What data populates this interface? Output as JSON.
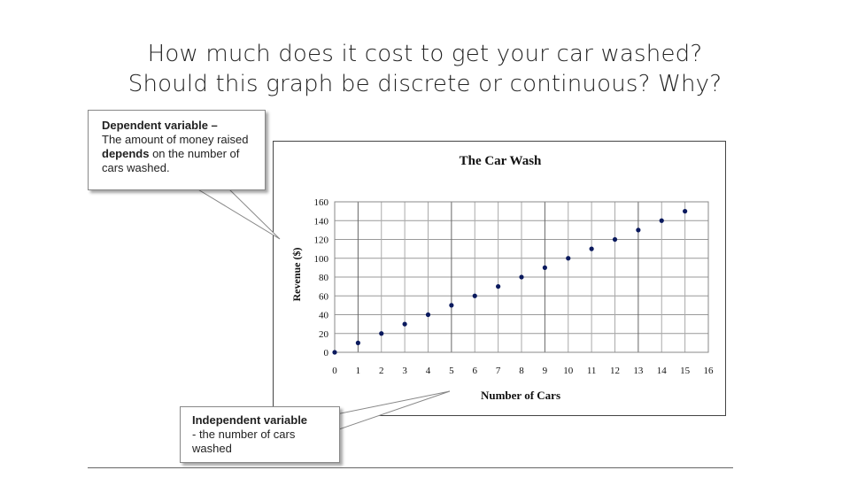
{
  "slide": {
    "title_line1": "How much does it cost to get your car washed?",
    "title_line2": "Should this graph be discrete or continuous?  Why?"
  },
  "callouts": {
    "dependent": {
      "heading": "Dependent variable –",
      "text_before": "The amount of money raised ",
      "emphasis": "depends",
      "text_after": " on the number of cars washed."
    },
    "independent": {
      "heading": "Independent variable",
      "text": "- the number of cars washed"
    }
  },
  "chart_data": {
    "type": "scatter",
    "title": "The Car Wash",
    "xlabel": "Number of Cars",
    "ylabel": "Revenue ($)",
    "xlim": [
      0,
      16
    ],
    "ylim": [
      0,
      160
    ],
    "xticks": [
      0,
      1,
      2,
      3,
      4,
      5,
      6,
      7,
      8,
      9,
      10,
      11,
      12,
      13,
      14,
      15,
      16
    ],
    "yticks": [
      0,
      20,
      40,
      60,
      80,
      100,
      120,
      140,
      160
    ],
    "grid": true,
    "legend": "none",
    "marker_color": "#0b1a5e",
    "x": [
      0,
      1,
      2,
      3,
      4,
      5,
      6,
      7,
      8,
      9,
      10,
      11,
      12,
      13,
      14,
      15
    ],
    "y": [
      0,
      10,
      20,
      30,
      40,
      50,
      60,
      70,
      80,
      90,
      100,
      110,
      120,
      130,
      140,
      150
    ]
  }
}
